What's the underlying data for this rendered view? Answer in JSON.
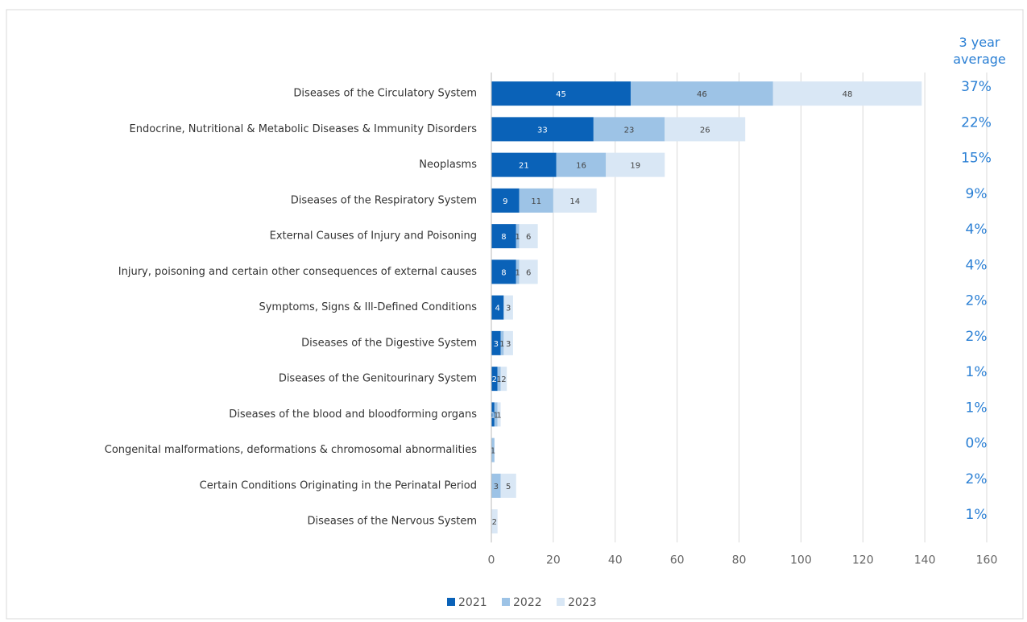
{
  "chart_data": {
    "type": "stacked_barh",
    "categories": [
      "Diseases of the Circulatory System",
      "Endocrine, Nutritional & Metabolic Diseases & Immunity Disorders",
      "Neoplasms",
      "Diseases of the Respiratory System",
      "External Causes of Injury and Poisoning",
      "Injury, poisoning and certain other consequences of external causes",
      "Symptoms, Signs & Ill-Defined Conditions",
      "Diseases of the Digestive System",
      "Diseases of the Genitourinary System",
      "Diseases of the blood and bloodforming organs",
      "Congenital malformations, deformations & chromosomal abnormalities",
      "Certain Conditions Originating in the Perinatal Period",
      "Diseases of the Nervous System"
    ],
    "series": [
      {
        "name": "2021",
        "color": "#0a62b8",
        "label_color": "#ffffff",
        "values": [
          45,
          33,
          21,
          9,
          8,
          8,
          4,
          3,
          2,
          1,
          null,
          null,
          null
        ]
      },
      {
        "name": "2022",
        "color": "#9dc3e6",
        "label_color": "#444444",
        "values": [
          46,
          23,
          16,
          11,
          1,
          1,
          null,
          1,
          1,
          1,
          1,
          3,
          null
        ]
      },
      {
        "name": "2023",
        "color": "#d9e7f5",
        "label_color": "#444444",
        "values": [
          48,
          26,
          19,
          14,
          6,
          6,
          3,
          3,
          2,
          1,
          null,
          5,
          2
        ]
      }
    ],
    "average_header": "3 year average",
    "average_labels": [
      "37%",
      "22%",
      "15%",
      "9%",
      "4%",
      "4%",
      "2%",
      "2%",
      "1%",
      "1%",
      "0%",
      "2%",
      "1%"
    ],
    "xlim": [
      0,
      160
    ],
    "xticks": [
      0,
      20,
      40,
      60,
      80,
      100,
      120,
      140,
      160
    ],
    "grid": true,
    "legend": "bottom"
  }
}
